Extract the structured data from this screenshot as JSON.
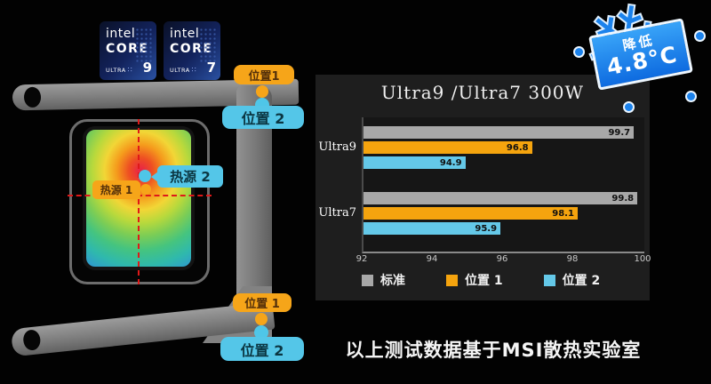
{
  "caption": {
    "text": "以上测试数据基于MSI散热实验室"
  },
  "snowflake": {
    "icon": "❄",
    "line1": "降低",
    "line2": "4.8°C"
  },
  "intel_badges": [
    {
      "brand": "intel",
      "product": "CORE",
      "series": "ULTRA",
      "dots": "∷",
      "number": "9"
    },
    {
      "brand": "intel",
      "product": "CORE",
      "series": "ULTRA",
      "dots": "∷",
      "number": "7"
    }
  ],
  "illustration": {
    "labels": {
      "pos1_top": "位置1",
      "pos2_top": "位置 2",
      "hot1": "热源 1",
      "hot2": "热源 2",
      "pos1_bottom": "位置 1",
      "pos2_bottom": "位置 2"
    }
  },
  "chart_data": {
    "type": "bar",
    "orientation": "horizontal",
    "title": "Ultra9 /Ultra7 300W",
    "categories": [
      "Ultra9",
      "Ultra7"
    ],
    "series": [
      {
        "name": "标准",
        "color": "#a8a8a8",
        "values": [
          99.7,
          99.8
        ]
      },
      {
        "name": "位置 1",
        "color": "#f5a40e",
        "values": [
          96.8,
          98.1
        ]
      },
      {
        "name": "位置 2",
        "color": "#64c8e8",
        "values": [
          94.9,
          95.9
        ]
      }
    ],
    "xlim": [
      92,
      100
    ],
    "ticks": [
      92,
      94,
      96,
      98,
      100
    ],
    "grid": false,
    "legend_position": "bottom",
    "value_labels": "inside-end"
  }
}
